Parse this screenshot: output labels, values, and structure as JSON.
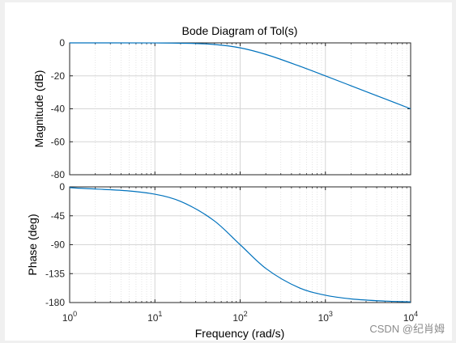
{
  "chart_data": {
    "type": "line",
    "title": "Bode Diagram of Tol(s)",
    "xlabel": "Frequency  (rad/s)",
    "xscale": "log",
    "xlim": [
      1,
      10000
    ],
    "x_ticks": [
      {
        "base": "10",
        "exp": "0"
      },
      {
        "base": "10",
        "exp": "1"
      },
      {
        "base": "10",
        "exp": "2"
      },
      {
        "base": "10",
        "exp": "3"
      },
      {
        "base": "10",
        "exp": "4"
      }
    ],
    "grid": true,
    "line_color": "#0072bd",
    "panels": [
      {
        "ylabel": "Magnitude (dB)",
        "ylim": [
          -80,
          0
        ],
        "yticks": [
          "0",
          "-20",
          "-40",
          "-60",
          "-80"
        ],
        "series": {
          "x": [
            1,
            10,
            20,
            50,
            100,
            200,
            500,
            1000,
            2000,
            5000,
            10000
          ],
          "y": [
            0,
            -0.04,
            -0.17,
            -0.97,
            -3.01,
            -6.99,
            -14.15,
            -20.04,
            -26.03,
            -33.98,
            -40
          ]
        }
      },
      {
        "ylabel": "Phase (deg)",
        "ylim": [
          -180,
          0
        ],
        "yticks": [
          "0",
          "-45",
          "-90",
          "-135",
          "-180"
        ],
        "series": {
          "x": [
            1,
            10,
            20,
            50,
            100,
            200,
            500,
            1000,
            2000,
            5000,
            10000
          ],
          "y": [
            -1.15,
            -11.4,
            -22.6,
            -53.1,
            -90,
            -126.9,
            -157.4,
            -168.6,
            -174.3,
            -177.7,
            -178.9
          ]
        }
      }
    ]
  },
  "watermark": "CSDN @纪肖姆"
}
